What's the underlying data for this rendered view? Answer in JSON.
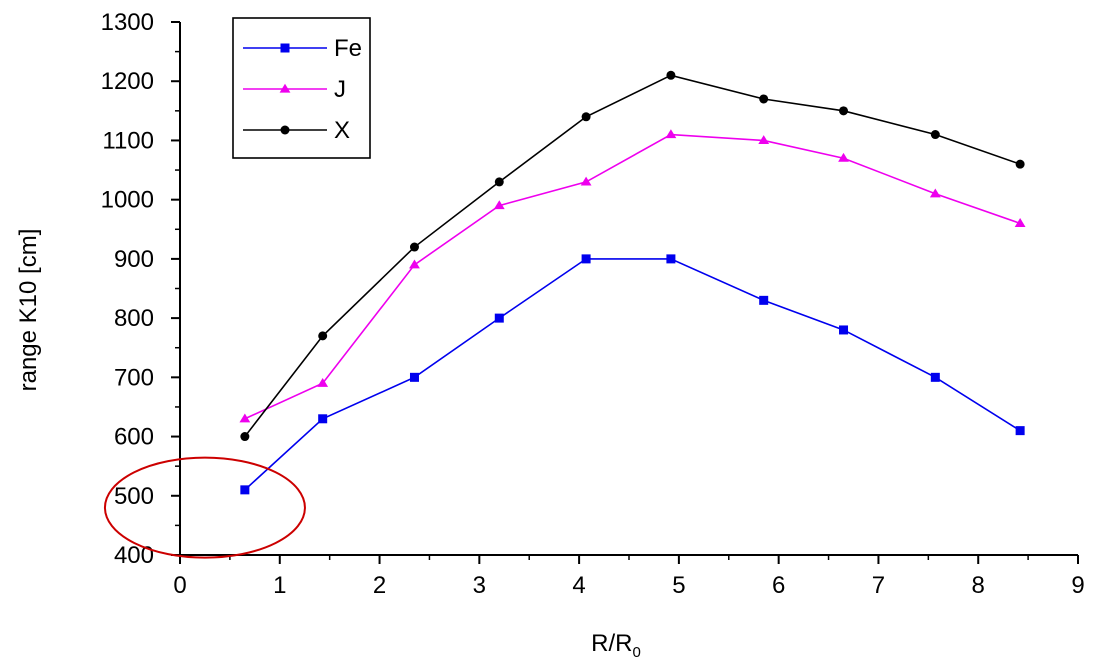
{
  "chart_data": {
    "type": "line",
    "title": "",
    "xlabel": "R/R",
    "xlabel_subscript": "0",
    "ylabel": "range K10 [cm]",
    "xlim": [
      0,
      9
    ],
    "ylim": [
      400,
      1300
    ],
    "xticks": [
      "0",
      "1",
      "2",
      "3",
      "4",
      "5",
      "6",
      "7",
      "8",
      "9"
    ],
    "yticks": [
      "400",
      "500",
      "600",
      "700",
      "800",
      "900",
      "1000",
      "1100",
      "1200",
      "1300"
    ],
    "grid": false,
    "legend_position": "top-left",
    "series": [
      {
        "name": "Fe",
        "color": "#0000ee",
        "marker": "square",
        "x": [
          0.65,
          1.43,
          2.35,
          3.2,
          4.07,
          4.92,
          5.85,
          6.65,
          7.57,
          8.42
        ],
        "y": [
          510,
          630,
          700,
          800,
          900,
          900,
          830,
          780,
          700,
          610
        ]
      },
      {
        "name": "J",
        "color": "#ee00ee",
        "marker": "triangle",
        "x": [
          0.65,
          1.43,
          2.35,
          3.2,
          4.07,
          4.92,
          5.85,
          6.65,
          7.57,
          8.42
        ],
        "y": [
          630,
          690,
          890,
          990,
          1030,
          1110,
          1100,
          1070,
          1010,
          960
        ]
      },
      {
        "name": "X",
        "color": "#000000",
        "marker": "circle",
        "x": [
          0.65,
          1.43,
          2.35,
          3.2,
          4.07,
          4.92,
          5.85,
          6.65,
          7.57,
          8.42
        ],
        "y": [
          600,
          770,
          920,
          1030,
          1140,
          1210,
          1170,
          1150,
          1110,
          1060
        ]
      }
    ],
    "annotations": [
      {
        "type": "ellipse",
        "color": "#cc0000",
        "center_x": 0.25,
        "center_y": 480,
        "encloses": "Fe point at x=0.65"
      }
    ]
  }
}
